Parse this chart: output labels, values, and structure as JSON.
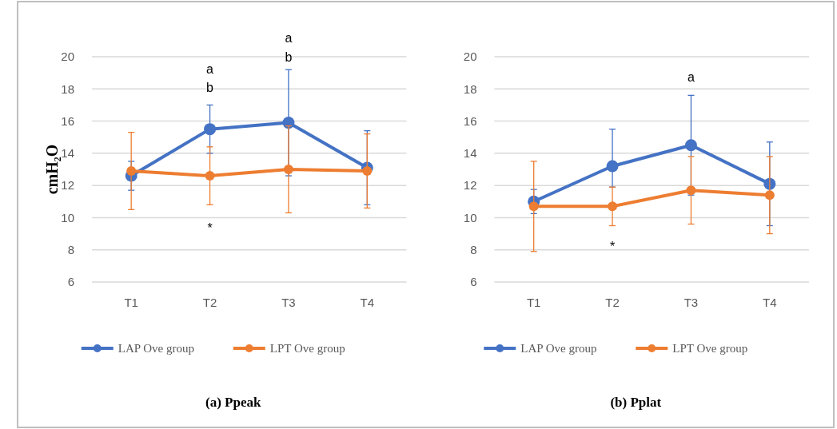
{
  "chart_data": [
    {
      "type": "line",
      "title": "(a) Ppeak",
      "ylabel": "cmH₂O",
      "categories": [
        "T1",
        "T2",
        "T3",
        "T4"
      ],
      "series": [
        {
          "name": "LAP Ove group",
          "color": "#4472c4",
          "values": [
            12.6,
            15.5,
            15.9,
            13.1
          ],
          "errors": [
            [
              11.7,
              13.5
            ],
            [
              14.0,
              17.0
            ],
            [
              12.6,
              19.2
            ],
            [
              10.8,
              15.4
            ]
          ]
        },
        {
          "name": "LPT Ove group",
          "color": "#ed7d31",
          "values": [
            12.9,
            12.6,
            13.0,
            12.9
          ],
          "errors": [
            [
              10.5,
              15.3
            ],
            [
              10.8,
              14.4
            ],
            [
              10.3,
              15.7
            ],
            [
              10.6,
              15.2
            ]
          ]
        }
      ],
      "ylim": [
        6,
        20
      ],
      "yticks": [
        6,
        8,
        10,
        12,
        14,
        16,
        18,
        20
      ],
      "grid": "y",
      "legend": "bottom",
      "marker": "circle",
      "line_style": "solid",
      "annotations": [
        "a",
        "b",
        "a",
        "b",
        "*"
      ]
    },
    {
      "type": "line",
      "title": "(b) Pplat",
      "categories": [
        "T1",
        "T2",
        "T3",
        "T4"
      ],
      "series": [
        {
          "name": "LAP Ove group",
          "color": "#4472c4",
          "values": [
            11.0,
            13.2,
            14.5,
            12.1
          ],
          "errors": [
            [
              10.25,
              11.75
            ],
            [
              11.9,
              15.5
            ],
            [
              11.4,
              17.6
            ],
            [
              9.5,
              14.7
            ]
          ]
        },
        {
          "name": "LPT Ove group",
          "color": "#ed7d31",
          "values": [
            10.7,
            10.7,
            11.7,
            11.4
          ],
          "errors": [
            [
              7.9,
              13.5
            ],
            [
              9.5,
              11.9
            ],
            [
              9.6,
              13.8
            ],
            [
              9.0,
              13.8
            ]
          ]
        }
      ],
      "ylim": [
        6,
        20
      ],
      "yticks": [
        6,
        8,
        10,
        12,
        14,
        16,
        18,
        20
      ],
      "grid": "y",
      "legend": "bottom",
      "marker": "circle",
      "line_style": "solid",
      "annotations": [
        "a",
        "*"
      ]
    }
  ]
}
